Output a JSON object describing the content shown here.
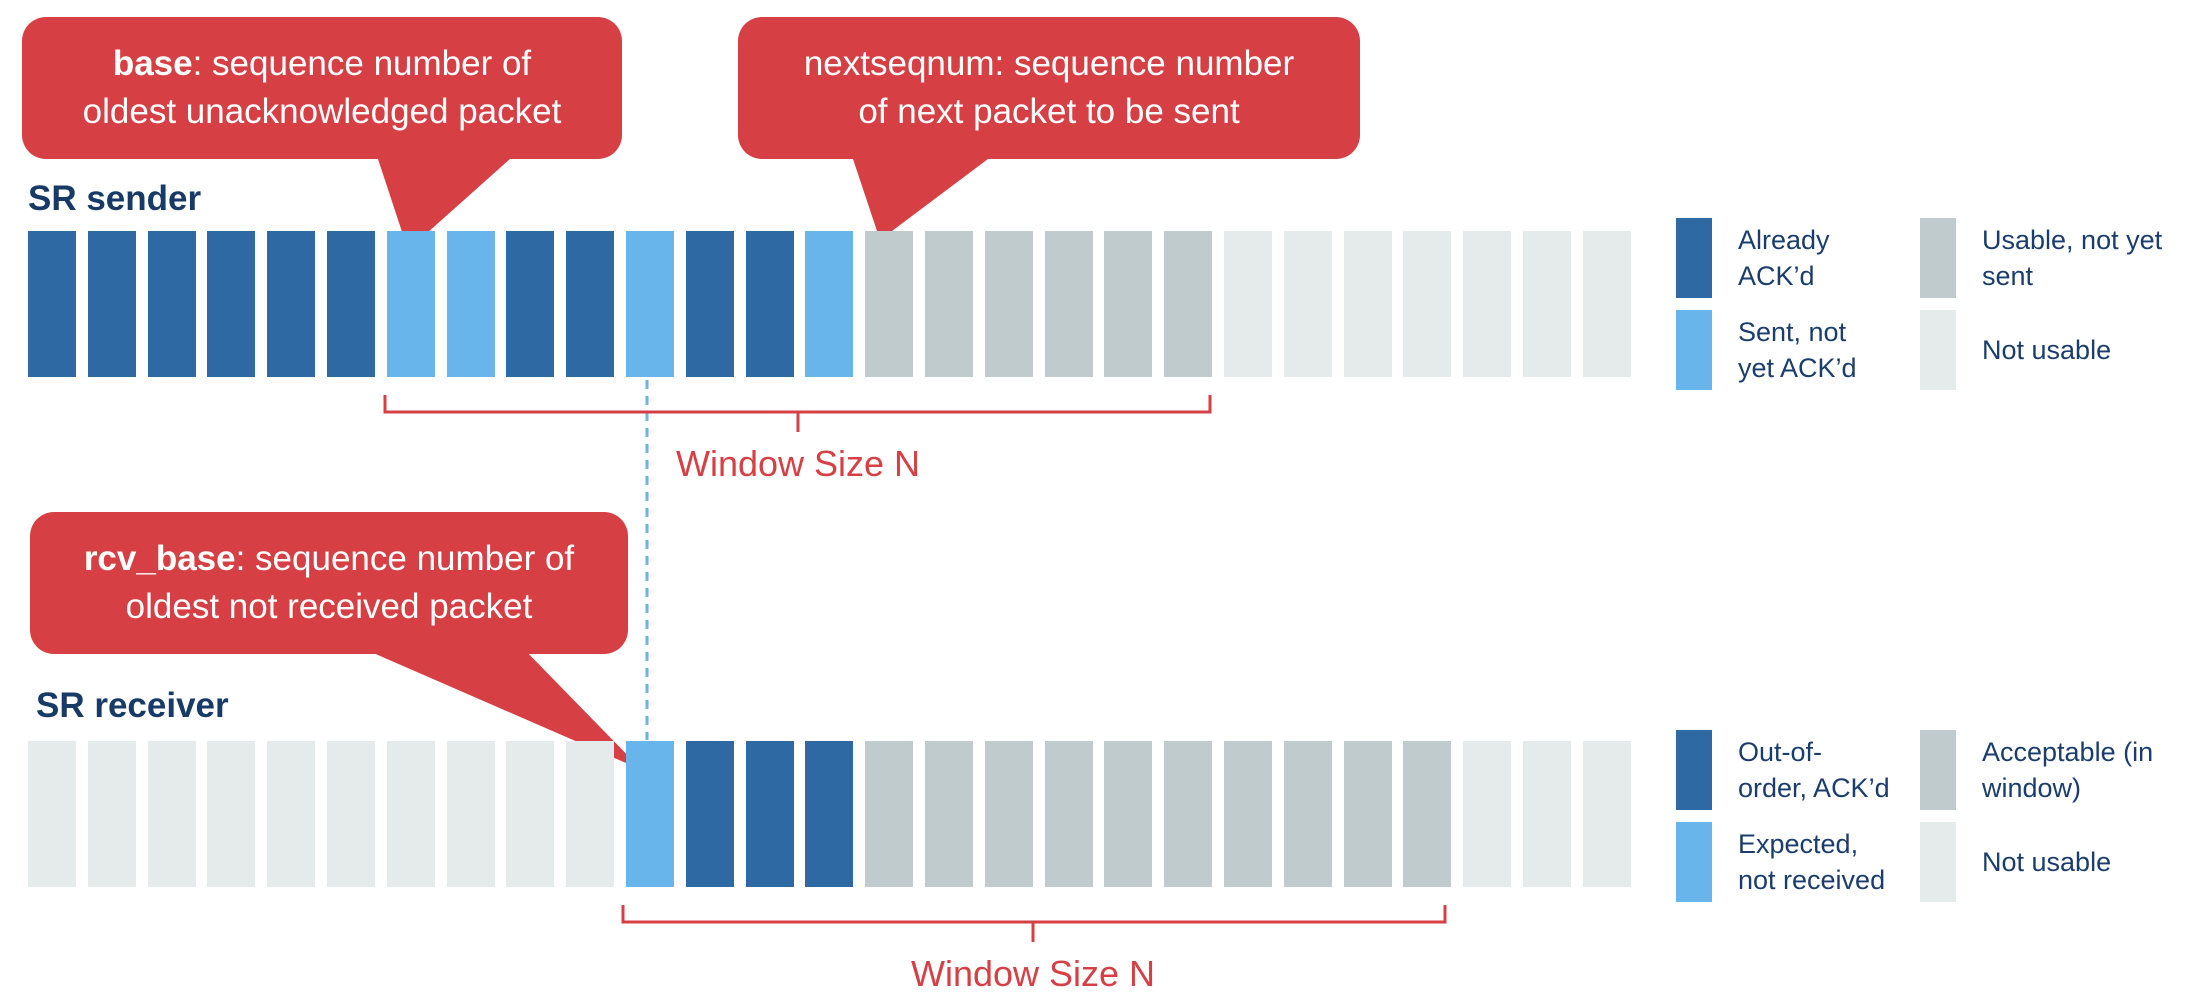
{
  "colors": {
    "ack": "#2e69a4",
    "sent": "#67b5ea",
    "usable": "#bfcbcc",
    "not_usable": "#e5eaea",
    "callout": "#d64045",
    "label": "#173a66"
  },
  "sender": {
    "title": "SR sender",
    "cells": [
      "ack",
      "ack",
      "ack",
      "ack",
      "ack",
      "ack",
      "sent",
      "sent",
      "ack",
      "ack",
      "sent",
      "ack",
      "ack",
      "sent",
      "usable",
      "usable",
      "usable",
      "usable",
      "usable",
      "usable",
      "not",
      "not",
      "not",
      "not",
      "not",
      "not",
      "not"
    ],
    "window_label": "Window Size N",
    "legend": [
      {
        "state": "ack",
        "text": "Already\nACK’d"
      },
      {
        "state": "sent",
        "text": "Sent, not\nyet ACK’d"
      },
      {
        "state": "usable",
        "text": "Usable, not yet\nsent"
      },
      {
        "state": "not",
        "text": "Not usable"
      }
    ]
  },
  "receiver": {
    "title": "SR receiver",
    "cells": [
      "not",
      "not",
      "not",
      "not",
      "not",
      "not",
      "not",
      "not",
      "not",
      "not",
      "sent",
      "ack",
      "ack",
      "ack",
      "usable",
      "usable",
      "usable",
      "usable",
      "usable",
      "usable",
      "usable",
      "usable",
      "usable",
      "usable",
      "not",
      "not",
      "not"
    ],
    "window_label": "Window Size N",
    "legend": [
      {
        "state": "ack",
        "text": "Out-of-\norder, ACK’d"
      },
      {
        "state": "sent",
        "text": "Expected,\nnot received"
      },
      {
        "state": "usable",
        "text": "Acceptable (in\nwindow)"
      },
      {
        "state": "not",
        "text": "Not usable"
      }
    ]
  },
  "callouts": {
    "base": {
      "term": "base",
      "rest": ": sequence number of",
      "line2": "oldest unacknowledged packet"
    },
    "nextseqnum": {
      "line1": "nextseqnum: sequence number",
      "line2": "of next packet to be sent"
    },
    "rcv_base": {
      "term": "rcv_base",
      "rest": ": sequence number of",
      "line2": "oldest not received packet"
    }
  }
}
